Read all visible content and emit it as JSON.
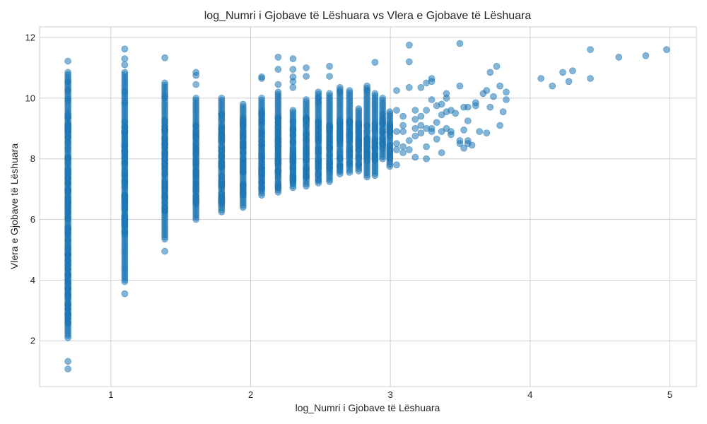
{
  "chart_data": {
    "type": "scatter",
    "title": "log_Numri i Gjobave të Lëshuara vs Vlera e Gjobave të Lëshuara",
    "xlabel": "log_Numri i Gjobave të Lëshuara",
    "ylabel": "Vlera e Gjobave të Lëshuara",
    "xlim": [
      0.49,
      5.19
    ],
    "ylim": [
      0.49,
      12.35
    ],
    "xticks": [
      1,
      2,
      3,
      4,
      5
    ],
    "yticks": [
      2,
      4,
      6,
      8,
      10,
      12
    ],
    "grid": true,
    "point_color": "#1f77b4",
    "point_opacity": 0.55,
    "columns": [
      {
        "x": 0.693,
        "ymin": 2.1,
        "ymax": 10.85,
        "dense": [
          2.5,
          9.5
        ],
        "extra": [
          1.07,
          1.32,
          11.22,
          10.55,
          10.25,
          9.95
        ]
      },
      {
        "x": 1.099,
        "ymin": 3.95,
        "ymax": 10.85,
        "dense": [
          5.5,
          9.3
        ],
        "extra": [
          3.55,
          11.62,
          11.3,
          11.1,
          10.2,
          9.85
        ]
      },
      {
        "x": 1.386,
        "ymin": 5.35,
        "ymax": 10.5,
        "dense": [
          6.2,
          9.3
        ],
        "extra": [
          4.95,
          11.33,
          10.05
        ]
      },
      {
        "x": 1.609,
        "ymin": 6.0,
        "ymax": 10.0,
        "dense": [
          6.5,
          9.2
        ],
        "extra": [
          10.85,
          10.75,
          10.45
        ]
      },
      {
        "x": 1.792,
        "ymin": 6.25,
        "ymax": 10.0,
        "dense": [
          6.5,
          9.5
        ],
        "extra": []
      },
      {
        "x": 1.946,
        "ymin": 6.4,
        "ymax": 9.8,
        "dense": [
          6.7,
          9.4
        ],
        "extra": []
      },
      {
        "x": 2.079,
        "ymin": 6.8,
        "ymax": 10.0,
        "dense": [
          6.9,
          9.6
        ],
        "extra": [
          10.65,
          10.7
        ]
      },
      {
        "x": 2.197,
        "ymin": 6.9,
        "ymax": 10.2,
        "dense": [
          7.0,
          9.4
        ],
        "extra": [
          11.35,
          10.95,
          10.45
        ]
      },
      {
        "x": 2.303,
        "ymin": 7.05,
        "ymax": 9.6,
        "dense": [
          7.2,
          9.3
        ],
        "extra": [
          11.3,
          10.95,
          10.7,
          10.55,
          10.35
        ]
      },
      {
        "x": 2.398,
        "ymin": 7.1,
        "ymax": 9.95,
        "dense": [
          7.3,
          9.4
        ],
        "extra": [
          11.0,
          10.72
        ]
      },
      {
        "x": 2.485,
        "ymin": 7.2,
        "ymax": 10.2,
        "dense": [
          7.3,
          9.3
        ],
        "extra": [
          10.0,
          9.85
        ]
      },
      {
        "x": 2.565,
        "ymin": 7.25,
        "ymax": 10.15,
        "dense": [
          7.4,
          9.2
        ],
        "extra": [
          11.05,
          10.72
        ]
      },
      {
        "x": 2.639,
        "ymin": 7.5,
        "ymax": 10.35,
        "dense": [
          7.6,
          9.3
        ],
        "extra": [
          10.2
        ]
      },
      {
        "x": 2.708,
        "ymin": 7.55,
        "ymax": 10.25,
        "dense": [
          7.7,
          9.3
        ],
        "extra": []
      },
      {
        "x": 2.773,
        "ymin": 7.6,
        "ymax": 9.65,
        "dense": [
          7.8,
          9.2
        ],
        "extra": []
      },
      {
        "x": 2.833,
        "ymin": 7.4,
        "ymax": 10.4,
        "dense": [
          7.9,
          9.2
        ],
        "extra": [
          10.25
        ]
      },
      {
        "x": 2.89,
        "ymin": 7.45,
        "ymax": 10.15,
        "dense": [
          7.9,
          9.2
        ],
        "extra": [
          11.18
        ]
      },
      {
        "x": 2.944,
        "ymin": 8.0,
        "ymax": 10.0,
        "dense": [
          8.3,
          9.5
        ],
        "extra": []
      },
      {
        "x": 2.996,
        "ymin": 7.75,
        "ymax": 9.55,
        "dense": [
          8.0,
          9.3
        ],
        "extra": []
      }
    ],
    "sparse_points": [
      [
        3.045,
        10.25
      ],
      [
        3.045,
        9.6
      ],
      [
        3.045,
        8.5
      ],
      [
        3.045,
        8.3
      ],
      [
        3.045,
        7.8
      ],
      [
        3.045,
        8.9
      ],
      [
        3.091,
        9.4
      ],
      [
        3.091,
        8.9
      ],
      [
        3.091,
        8.4
      ],
      [
        3.091,
        8.2
      ],
      [
        3.091,
        9.1
      ],
      [
        3.135,
        11.75
      ],
      [
        3.135,
        11.2
      ],
      [
        3.135,
        10.35
      ],
      [
        3.135,
        8.6
      ],
      [
        3.135,
        8.3
      ],
      [
        3.178,
        9.6
      ],
      [
        3.178,
        9.3
      ],
      [
        3.178,
        8.75
      ],
      [
        3.178,
        8.05
      ],
      [
        3.178,
        9.0
      ],
      [
        3.219,
        10.35
      ],
      [
        3.219,
        9.4
      ],
      [
        3.219,
        9.1
      ],
      [
        3.219,
        8.85
      ],
      [
        3.258,
        10.5
      ],
      [
        3.258,
        9.6
      ],
      [
        3.258,
        8.4
      ],
      [
        3.258,
        8.0
      ],
      [
        3.258,
        9.0
      ],
      [
        3.296,
        10.65
      ],
      [
        3.296,
        10.55
      ],
      [
        3.296,
        9.95
      ],
      [
        3.296,
        9.0
      ],
      [
        3.296,
        8.9
      ],
      [
        3.332,
        9.75
      ],
      [
        3.332,
        9.2
      ],
      [
        3.332,
        8.65
      ],
      [
        3.367,
        9.8
      ],
      [
        3.367,
        9.45
      ],
      [
        3.367,
        8.9
      ],
      [
        3.367,
        8.2
      ],
      [
        3.401,
        10.15
      ],
      [
        3.401,
        10.0
      ],
      [
        3.401,
        9.55
      ],
      [
        3.401,
        9.0
      ],
      [
        3.434,
        9.6
      ],
      [
        3.434,
        8.9
      ],
      [
        3.434,
        8.8
      ],
      [
        3.466,
        9.5
      ],
      [
        3.497,
        11.8
      ],
      [
        3.497,
        10.4
      ],
      [
        3.497,
        8.6
      ],
      [
        3.497,
        8.5
      ],
      [
        3.526,
        9.7
      ],
      [
        3.526,
        8.95
      ],
      [
        3.526,
        8.35
      ],
      [
        3.555,
        9.7
      ],
      [
        3.555,
        9.25
      ],
      [
        3.555,
        8.6
      ],
      [
        3.555,
        8.5
      ],
      [
        3.584,
        8.45
      ],
      [
        3.611,
        9.85
      ],
      [
        3.611,
        9.75
      ],
      [
        3.638,
        8.9
      ],
      [
        3.664,
        10.15
      ],
      [
        3.689,
        10.25
      ],
      [
        3.689,
        8.85
      ],
      [
        3.714,
        10.85
      ],
      [
        3.714,
        9.7
      ],
      [
        3.738,
        10.05
      ],
      [
        3.761,
        11.05
      ],
      [
        3.784,
        10.4
      ],
      [
        3.784,
        9.1
      ],
      [
        3.807,
        9.55
      ],
      [
        3.829,
        10.2
      ],
      [
        3.829,
        9.95
      ],
      [
        4.078,
        10.65
      ],
      [
        4.159,
        10.4
      ],
      [
        4.234,
        10.85
      ],
      [
        4.277,
        10.55
      ],
      [
        4.304,
        10.9
      ],
      [
        4.431,
        10.65
      ],
      [
        4.431,
        11.6
      ],
      [
        4.635,
        11.35
      ],
      [
        4.828,
        11.4
      ],
      [
        4.977,
        11.6
      ]
    ]
  }
}
